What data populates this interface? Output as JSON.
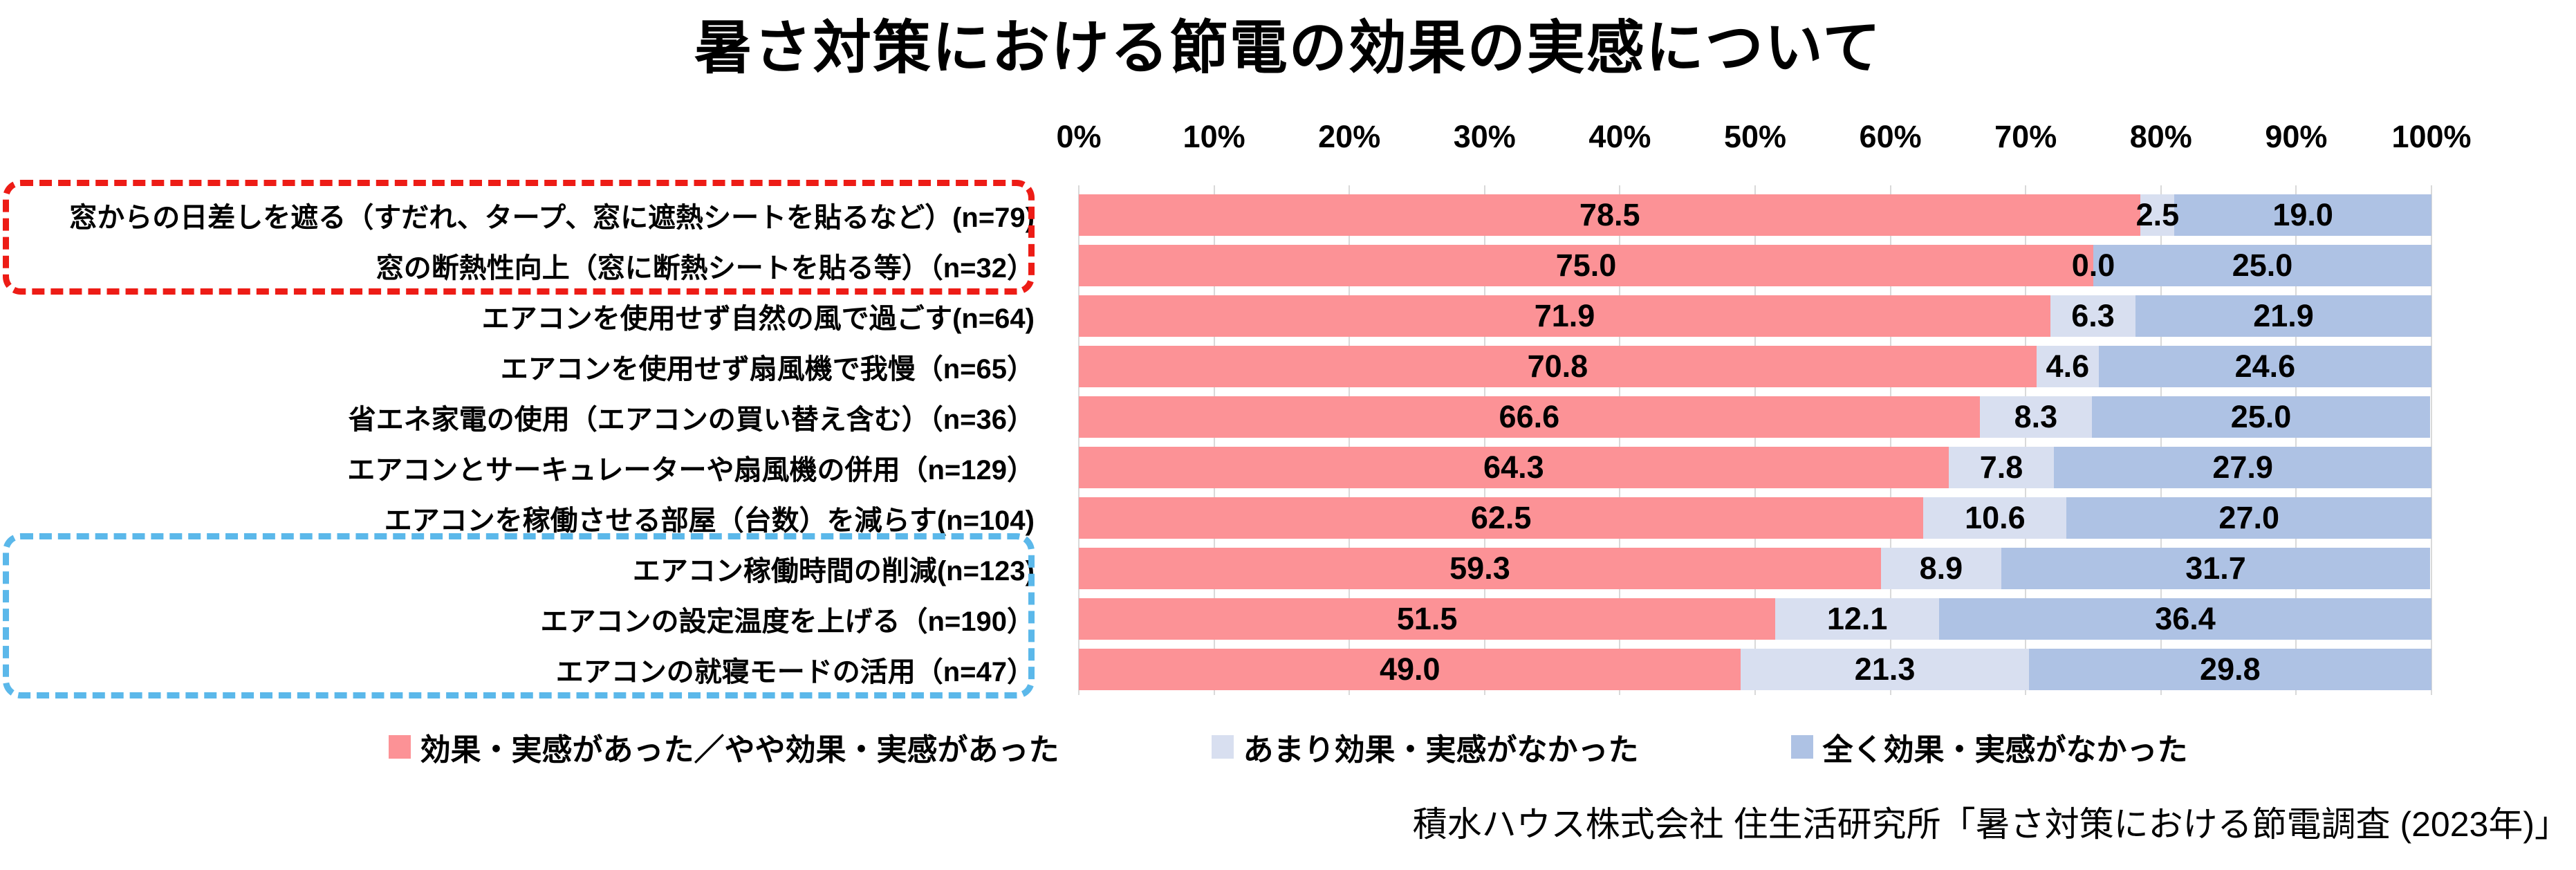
{
  "title": "暑さ対策における節電の効果の実感について",
  "source": "積水ハウス株式会社 住生活研究所「暑さ対策における節電調査 (2023年)」",
  "colors": {
    "series_effective": "#FC9296",
    "series_little_effect": "#D8DFF0",
    "series_no_effect": "#AEC2E4",
    "gridline": "#D9D9D9",
    "highlight_red": "#ED1C16",
    "highlight_blue": "#5BB8EA",
    "text": "#000000"
  },
  "chart_data": {
    "type": "bar",
    "stacked": true,
    "orientation": "horizontal",
    "unit": "%",
    "xlim": [
      0,
      100
    ],
    "grid": true,
    "legend_position": "bottom",
    "x_ticks": [
      "0%",
      "10%",
      "20%",
      "30%",
      "40%",
      "50%",
      "60%",
      "70%",
      "80%",
      "90%",
      "100%"
    ],
    "categories": [
      "窓からの日差しを遮る（すだれ、タープ、窓に遮熱シートを貼るなど）(n=79)",
      "窓の断熱性向上（窓に断熱シートを貼る等）（n=32）",
      "エアコンを使用せず自然の風で過ごす(n=64)",
      "エアコンを使用せず扇風機で我慢（n=65）",
      "省エネ家電の使用（エアコンの買い替え含む）（n=36）",
      "エアコンとサーキュレーターや扇風機の併用（n=129）",
      "エアコンを稼働させる部屋（台数）を減らす(n=104)",
      "エアコン稼働時間の削減(n=123)",
      "エアコンの設定温度を上げる（n=190）",
      "エアコンの就寝モードの活用（n=47）"
    ],
    "series": [
      {
        "name": "効果・実感があった／やや効果・実感があった",
        "color": "#FC9296",
        "values": [
          78.5,
          75.0,
          71.9,
          70.8,
          66.6,
          64.3,
          62.5,
          59.3,
          51.5,
          49.0
        ]
      },
      {
        "name": "あまり効果・実感がなかった",
        "color": "#D8DFF0",
        "values": [
          2.5,
          0.0,
          6.3,
          4.6,
          8.3,
          7.8,
          10.6,
          8.9,
          12.1,
          21.3
        ]
      },
      {
        "name": "全く効果・実感がなかった",
        "color": "#AEC2E4",
        "values": [
          19.0,
          25.0,
          21.9,
          24.6,
          25.0,
          27.9,
          27.0,
          31.7,
          36.4,
          29.8
        ]
      }
    ],
    "highlight_groups": [
      {
        "rows": [
          0,
          1
        ],
        "color": "#ED1C16",
        "style": "dashed"
      },
      {
        "rows": [
          7,
          8,
          9
        ],
        "color": "#5BB8EA",
        "style": "dashed"
      }
    ]
  },
  "legend": {
    "items": [
      {
        "label": "効果・実感があった／やや効果・実感があった",
        "color": "#FC9296"
      },
      {
        "label": "あまり効果・実感がなかった",
        "color": "#D8DFF0"
      },
      {
        "label": "全く効果・実感がなかった",
        "color": "#AEC2E4"
      }
    ]
  }
}
